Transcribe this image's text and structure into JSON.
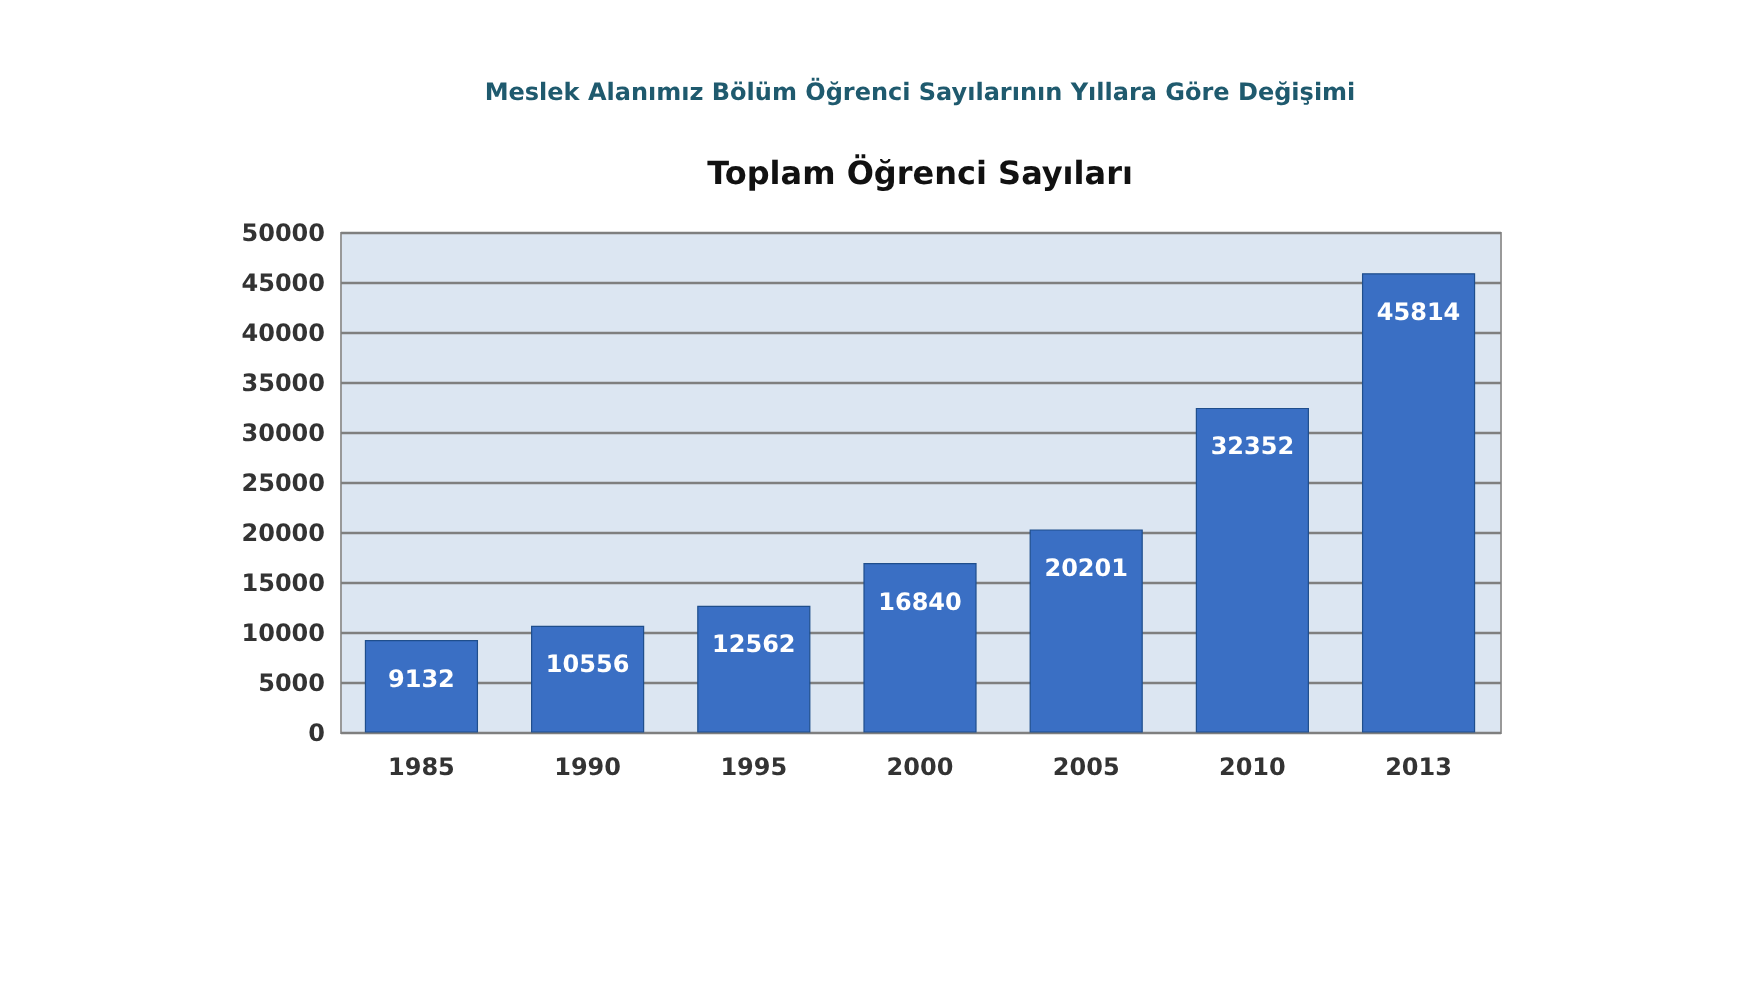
{
  "chart_data": {
    "type": "bar",
    "title": "Meslek Alanımız Bölüm Öğrenci Sayılarının Yıllara Göre Değişimi",
    "subtitle": "Toplam Öğrenci Sayıları",
    "categories": [
      "1985",
      "1990",
      "1995",
      "2000",
      "2005",
      "2010",
      "2013"
    ],
    "values": [
      9132,
      10556,
      12562,
      16840,
      20201,
      32352,
      45814
    ],
    "color": "#3a6fc4",
    "ylim": [
      0,
      50000
    ],
    "yticks": [
      0,
      5000,
      10000,
      15000,
      20000,
      25000,
      30000,
      35000,
      40000,
      45000,
      50000
    ],
    "grid": "y",
    "data_labels": true
  }
}
